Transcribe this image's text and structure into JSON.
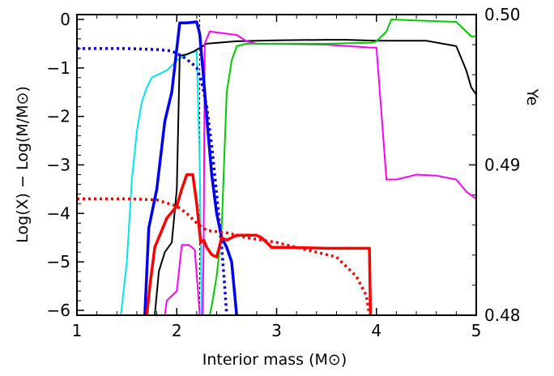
{
  "chart_data": {
    "type": "line",
    "xlabel": "Interior mass (M⊙)",
    "ylabel": "Log(X) − Log(M/M⊙)",
    "y2label": "Ye",
    "xlim": [
      1,
      5
    ],
    "ylim": [
      -6.1,
      0.1
    ],
    "y2lim": [
      0.48,
      0.5
    ],
    "xticks": [
      1,
      2,
      3,
      4,
      5
    ],
    "yticks": [
      0,
      -1,
      -2,
      -3,
      -4,
      -5,
      -6
    ],
    "y2ticks": [
      "0.50",
      "0.49",
      "0.48"
    ],
    "y2tick_values": [
      0.5,
      0.49,
      0.48
    ],
    "grid": false,
    "legend": "none",
    "series": [
      {
        "color": "#00e5ee",
        "width": 2,
        "values": [
          [
            1.44,
            -6.1
          ],
          [
            1.5,
            -5.0
          ],
          [
            1.55,
            -3.3
          ],
          [
            1.6,
            -2.3
          ],
          [
            1.65,
            -1.7
          ],
          [
            1.7,
            -1.4
          ],
          [
            1.75,
            -1.2
          ],
          [
            1.8,
            -1.15
          ],
          [
            1.9,
            -1.05
          ],
          [
            2.0,
            -0.85
          ],
          [
            2.1,
            -0.72
          ],
          [
            2.2,
            -0.65
          ],
          [
            2.23,
            -3.0
          ],
          [
            2.25,
            -6.1
          ]
        ]
      },
      {
        "color": "#000000",
        "width": 2,
        "values": [
          [
            1.78,
            -6.1
          ],
          [
            1.82,
            -5.2
          ],
          [
            1.88,
            -4.8
          ],
          [
            1.95,
            -4.6
          ],
          [
            2.0,
            -3.5
          ],
          [
            2.03,
            -0.75
          ],
          [
            2.1,
            -0.72
          ],
          [
            2.18,
            -0.65
          ],
          [
            2.22,
            -0.6
          ],
          [
            2.3,
            -0.5
          ],
          [
            2.6,
            -0.45
          ],
          [
            3.0,
            -0.43
          ],
          [
            3.5,
            -0.42
          ],
          [
            3.7,
            -0.42
          ],
          [
            4.0,
            -0.44
          ],
          [
            4.5,
            -0.44
          ],
          [
            4.8,
            -0.55
          ],
          [
            4.9,
            -1.05
          ],
          [
            4.95,
            -1.4
          ],
          [
            5.0,
            -1.55
          ]
        ]
      },
      {
        "color": "#ff00ff",
        "width": 2,
        "values": [
          [
            1.88,
            -6.1
          ],
          [
            1.9,
            -5.8
          ],
          [
            2.0,
            -5.6
          ],
          [
            2.05,
            -4.65
          ],
          [
            2.12,
            -4.65
          ],
          [
            2.18,
            -4.75
          ],
          [
            2.22,
            -5.8
          ],
          [
            2.23,
            -6.1
          ]
        ]
      },
      {
        "color": "#ff00ff",
        "width": 2,
        "values": [
          [
            2.26,
            -6.1
          ],
          [
            2.27,
            -4.5
          ],
          [
            2.28,
            -0.5
          ],
          [
            2.33,
            -0.25
          ],
          [
            2.6,
            -0.32
          ],
          [
            2.7,
            -0.45
          ],
          [
            2.8,
            -0.5
          ],
          [
            3.5,
            -0.52
          ],
          [
            3.95,
            -0.58
          ],
          [
            4.0,
            -0.58
          ],
          [
            4.1,
            -3.3
          ],
          [
            4.2,
            -3.3
          ],
          [
            4.3,
            -3.25
          ],
          [
            4.4,
            -3.2
          ],
          [
            4.6,
            -3.22
          ],
          [
            4.8,
            -3.3
          ],
          [
            4.9,
            -3.55
          ],
          [
            5.0,
            -3.7
          ]
        ]
      },
      {
        "color": "#00cc00",
        "width": 2,
        "values": [
          [
            2.33,
            -6.1
          ],
          [
            2.35,
            -5.9
          ],
          [
            2.4,
            -5.3
          ],
          [
            2.45,
            -4.3
          ],
          [
            2.5,
            -1.5
          ],
          [
            2.55,
            -0.85
          ],
          [
            2.6,
            -0.55
          ],
          [
            2.7,
            -0.5
          ],
          [
            2.8,
            -0.5
          ],
          [
            3.5,
            -0.5
          ],
          [
            3.95,
            -0.48
          ],
          [
            4.0,
            -0.45
          ],
          [
            4.1,
            -0.25
          ],
          [
            4.15,
            0.0
          ],
          [
            4.4,
            -0.02
          ],
          [
            4.8,
            -0.05
          ],
          [
            4.95,
            -0.35
          ],
          [
            5.0,
            -0.35
          ]
        ]
      },
      {
        "color": "#0000ee",
        "width": 3.5,
        "values": [
          [
            1.68,
            -6.1
          ],
          [
            1.72,
            -4.3
          ],
          [
            1.8,
            -3.5
          ],
          [
            1.88,
            -2.1
          ],
          [
            1.95,
            -1.5
          ],
          [
            2.0,
            -0.6
          ],
          [
            2.03,
            -0.07
          ],
          [
            2.1,
            -0.07
          ],
          [
            2.2,
            -0.05
          ],
          [
            2.23,
            -0.3
          ],
          [
            2.26,
            -1.0
          ],
          [
            2.3,
            -2.0
          ],
          [
            2.35,
            -3.2
          ],
          [
            2.4,
            -4.0
          ],
          [
            2.45,
            -4.5
          ],
          [
            2.5,
            -4.7
          ],
          [
            2.55,
            -5.0
          ],
          [
            2.6,
            -6.1
          ]
        ]
      },
      {
        "color": "#0000ee",
        "width": 3.5,
        "dash": "3 4",
        "values": [
          [
            1.0,
            -0.6
          ],
          [
            1.5,
            -0.6
          ],
          [
            1.8,
            -0.62
          ],
          [
            1.95,
            -0.65
          ],
          [
            2.05,
            -0.75
          ],
          [
            2.15,
            -0.9
          ],
          [
            2.2,
            -1.0
          ],
          [
            2.25,
            -1.3
          ],
          [
            2.3,
            -1.8
          ],
          [
            2.35,
            -2.6
          ],
          [
            2.4,
            -3.6
          ],
          [
            2.45,
            -4.7
          ],
          [
            2.48,
            -5.5
          ],
          [
            2.5,
            -6.1
          ]
        ]
      },
      {
        "color": "#ff0000",
        "width": 3.5,
        "values": [
          [
            1.7,
            -6.1
          ],
          [
            1.73,
            -5.5
          ],
          [
            1.78,
            -4.7
          ],
          [
            1.84,
            -4.4
          ],
          [
            1.9,
            -4.1
          ],
          [
            1.96,
            -3.95
          ],
          [
            2.0,
            -3.85
          ],
          [
            2.05,
            -3.5
          ],
          [
            2.1,
            -3.2
          ],
          [
            2.16,
            -3.2
          ],
          [
            2.2,
            -3.8
          ],
          [
            2.24,
            -4.6
          ],
          [
            2.27,
            -4.55
          ],
          [
            2.3,
            -4.7
          ],
          [
            2.35,
            -4.85
          ],
          [
            2.4,
            -4.9
          ],
          [
            2.45,
            -4.5
          ],
          [
            2.5,
            -4.55
          ],
          [
            2.55,
            -4.5
          ],
          [
            2.6,
            -4.45
          ],
          [
            2.8,
            -4.45
          ],
          [
            2.85,
            -4.5
          ],
          [
            2.9,
            -4.6
          ],
          [
            2.95,
            -4.7
          ],
          [
            3.1,
            -4.7
          ],
          [
            3.5,
            -4.72
          ],
          [
            3.93,
            -4.72
          ],
          [
            3.94,
            -6.1
          ]
        ]
      },
      {
        "color": "#ff0000",
        "width": 3.5,
        "dash": "3 4",
        "values": [
          [
            1.0,
            -3.7
          ],
          [
            1.5,
            -3.7
          ],
          [
            1.8,
            -3.72
          ],
          [
            2.0,
            -3.85
          ],
          [
            2.1,
            -4.0
          ],
          [
            2.2,
            -4.2
          ],
          [
            2.3,
            -4.35
          ],
          [
            2.5,
            -4.4
          ],
          [
            2.7,
            -4.5
          ],
          [
            3.0,
            -4.6
          ],
          [
            3.4,
            -4.8
          ],
          [
            3.6,
            -4.9
          ],
          [
            3.8,
            -5.3
          ],
          [
            3.9,
            -5.7
          ],
          [
            3.93,
            -6.1
          ]
        ]
      }
    ],
    "dashed_marker_x": 2.23
  }
}
